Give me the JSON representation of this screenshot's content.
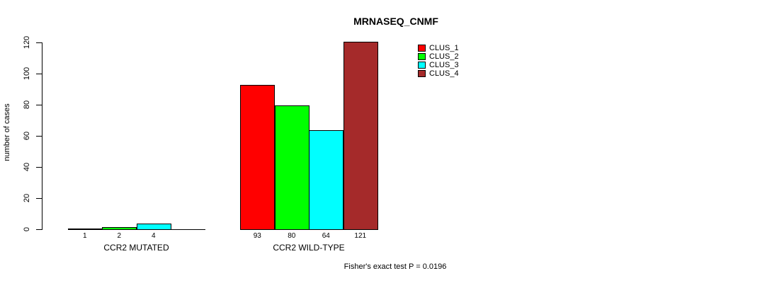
{
  "title": "MRNASEQ_CNMF",
  "footer": "Fisher's exact test P = 0.0196",
  "chart_data": {
    "type": "bar",
    "title": "MRNASEQ_CNMF",
    "xlabel": "",
    "ylabel": "number of cases",
    "ylim": [
      0,
      120
    ],
    "yticks": [
      0,
      20,
      40,
      60,
      80,
      100,
      120
    ],
    "grid": false,
    "legend_position": "top-right-inside",
    "categories": [
      "CCR2 MUTATED",
      "CCR2 WILD-TYPE"
    ],
    "series": [
      {
        "name": "CLUS_1",
        "color": "#FF0000",
        "values": [
          1,
          93
        ]
      },
      {
        "name": "CLUS_2",
        "color": "#00FF00",
        "values": [
          2,
          80
        ]
      },
      {
        "name": "CLUS_3",
        "color": "#00FFFF",
        "values": [
          4,
          64
        ]
      },
      {
        "name": "CLUS_4",
        "color": "#A52A2A",
        "values": [
          0,
          121
        ]
      }
    ],
    "bar_value_labels": [
      [
        "1",
        "2",
        "4",
        ""
      ],
      [
        "93",
        "80",
        "64",
        "121"
      ]
    ],
    "annotation": "Fisher's exact test P = 0.0196"
  }
}
